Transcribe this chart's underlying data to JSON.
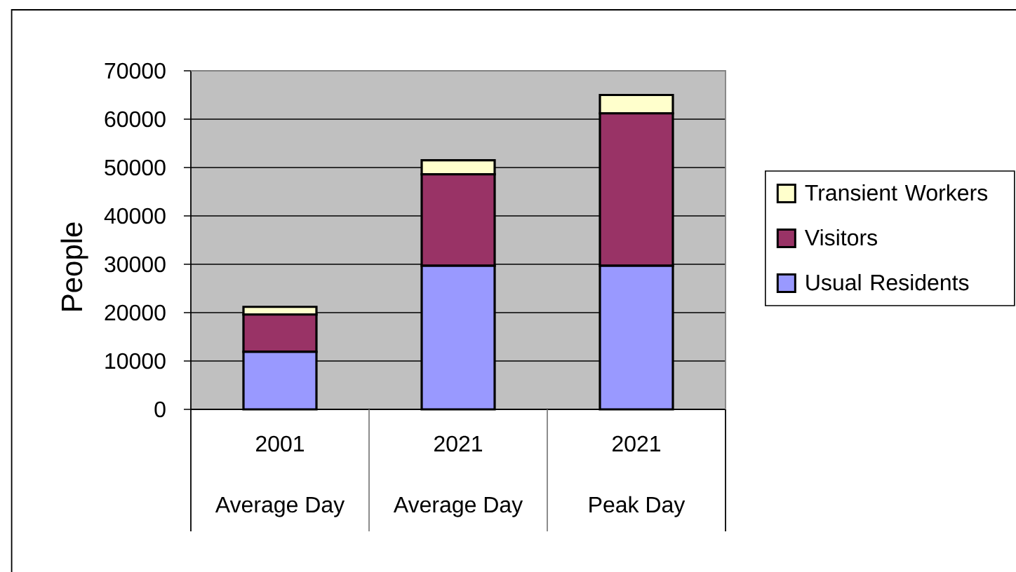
{
  "chart_data": {
    "type": "bar",
    "stacked": true,
    "ylabel": "People",
    "categories": [
      "2001",
      "2021",
      "2021"
    ],
    "annotations": [
      "Average Day",
      "Average Day",
      "Peak Day"
    ],
    "series": [
      {
        "name": "Usual Residents",
        "color": "#9999ff",
        "values": [
          11900,
          29700,
          29700
        ]
      },
      {
        "name": "Visitors",
        "color": "#993366",
        "values": [
          7700,
          18900,
          31500
        ]
      },
      {
        "name": "Transient Workers",
        "color": "#ffffcc",
        "values": [
          1600,
          2900,
          3800
        ]
      }
    ],
    "ylim": [
      0,
      70000
    ],
    "yticks": [
      0,
      10000,
      20000,
      30000,
      40000,
      50000,
      60000,
      70000
    ],
    "grid": "y",
    "legend": "right"
  }
}
